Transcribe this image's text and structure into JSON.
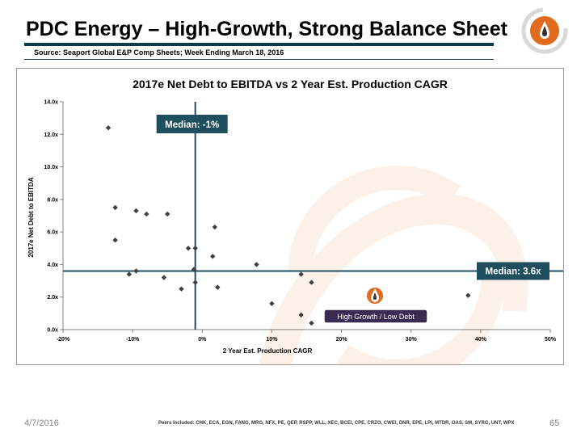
{
  "header": {
    "title": "PDC Energy – High-Growth, Strong Balance Sheet",
    "source": "Source: Seaport Global E&P Comp Sheets; Week Ending March 18, 2016"
  },
  "footer": {
    "date": "4/7/2016",
    "peers": "Peers Included: CHK, ECA, EGN, FANG, MRO, NFX, PE, QEP, RSPP, WLL, XEC, BCEI, CPE, CRZO, CWEI, DNR, EPE, LPI, MTDR, OAS, SM, SYRG, UNT, WPX",
    "page": "65"
  },
  "colors": {
    "accent": "#1f4e5f",
    "brand_orange": "#e06a1e",
    "badge": "#3b2a52",
    "points": "#404040"
  },
  "chart_data": {
    "type": "scatter",
    "title": "2017e Net Debt to EBITDA vs 2 Year Est. Production CAGR",
    "xlabel": "2 Year Est. Production CAGR",
    "ylabel": "2017e Net Debt to EBITDA",
    "xlim": [
      -0.2,
      0.5
    ],
    "ylim": [
      0,
      14
    ],
    "xticks": [
      -0.2,
      -0.1,
      0,
      0.1,
      0.2,
      0.3,
      0.4,
      0.5
    ],
    "xtick_labels": [
      "-20%",
      "-10%",
      "0%",
      "10%",
      "20%",
      "30%",
      "40%",
      "50%"
    ],
    "yticks": [
      0,
      2,
      4,
      6,
      8,
      10,
      12,
      14
    ],
    "ytick_labels": [
      "0.0x",
      "2.0x",
      "4.0x",
      "6.0x",
      "8.0x",
      "10.0x",
      "12.0x",
      "14.0x"
    ],
    "grid": false,
    "median_x": {
      "value": -0.01,
      "label": "Median: -1%"
    },
    "median_y": {
      "value": 3.6,
      "label": "Median: 3.6x"
    },
    "highlight": {
      "label": "High Growth / Low Debt"
    },
    "points": [
      {
        "x": -0.135,
        "y": 12.4
      },
      {
        "x": -0.125,
        "y": 7.5
      },
      {
        "x": -0.095,
        "y": 7.3
      },
      {
        "x": -0.08,
        "y": 7.1
      },
      {
        "x": -0.05,
        "y": 7.1
      },
      {
        "x": -0.125,
        "y": 5.5
      },
      {
        "x": -0.105,
        "y": 3.4
      },
      {
        "x": -0.095,
        "y": 3.6
      },
      {
        "x": -0.055,
        "y": 3.2
      },
      {
        "x": -0.03,
        "y": 2.5
      },
      {
        "x": -0.02,
        "y": 5.0
      },
      {
        "x": -0.01,
        "y": 5.0
      },
      {
        "x": -0.012,
        "y": 3.7
      },
      {
        "x": -0.01,
        "y": 2.9
      },
      {
        "x": 0.015,
        "y": 4.5
      },
      {
        "x": 0.018,
        "y": 6.3
      },
      {
        "x": 0.022,
        "y": 2.6
      },
      {
        "x": 0.078,
        "y": 4.0
      },
      {
        "x": 0.1,
        "y": 1.6
      },
      {
        "x": 0.142,
        "y": 3.4
      },
      {
        "x": 0.142,
        "y": 0.9
      },
      {
        "x": 0.157,
        "y": 2.9
      },
      {
        "x": 0.157,
        "y": 0.4
      },
      {
        "x": 0.382,
        "y": 2.1
      }
    ]
  }
}
